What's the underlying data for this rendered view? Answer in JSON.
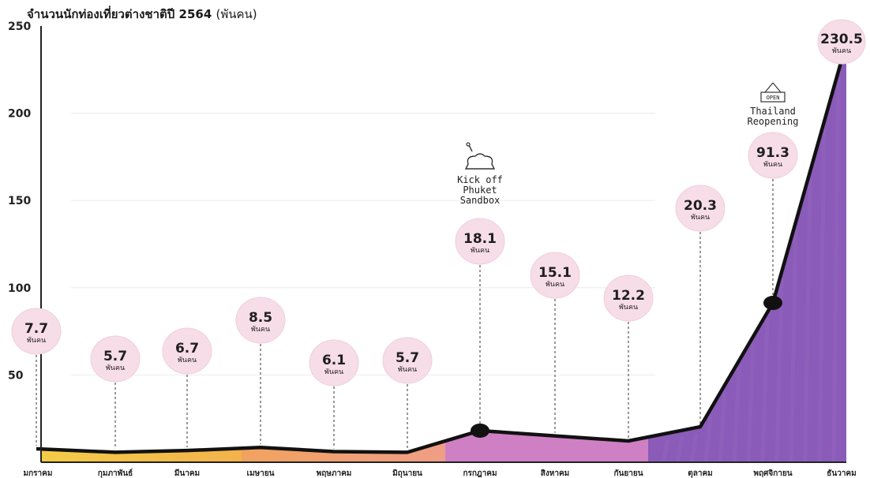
{
  "header": {
    "title": "จำนวนนักท่องเที่ยวต่างชาติปี 2564",
    "unit": "(พันคน)"
  },
  "chart_data": {
    "type": "area",
    "title": "จำนวนนักท่องเที่ยวต่างชาติปี 2564 (พันคน)",
    "categories": [
      "มกราคม",
      "กุมภาพันธ์",
      "มีนาคม",
      "เมษายน",
      "พฤษภาคม",
      "มิถุนายน",
      "กรกฎาคม",
      "สิงหาคม",
      "กันยายน",
      "ตุลาคม",
      "พฤศจิกายน",
      "ธันวาคม"
    ],
    "values": [
      7.7,
      5.7,
      6.7,
      8.5,
      6.1,
      5.7,
      18.1,
      15.1,
      12.2,
      20.3,
      91.3,
      230.5
    ],
    "data_labels": [
      "7.7",
      "5.7",
      "6.7",
      "8.5",
      "6.1",
      "5.7",
      "18.1",
      "15.1",
      "12.2",
      "20.3",
      "91.3",
      "230.5"
    ],
    "data_label_unit": "พันคน",
    "ylim": [
      0,
      250
    ],
    "yticks": [
      50,
      100,
      150,
      200,
      250
    ],
    "grid": true,
    "colors": {
      "line": "#111111",
      "band_jan_feb": "#f4cc47",
      "band_mar_apr": "#f2a25e",
      "band_may_jun": "#ef9e86",
      "band_jul_sep": "#cf7fc3",
      "band_oct_dec": "#8a5bb8",
      "bubble": "#f6dde7"
    },
    "annotations": [
      {
        "index": 6,
        "icon": "chef-hat-icon",
        "lines": [
          "Kick off",
          "Phuket",
          "Sandbox"
        ]
      },
      {
        "index": 10,
        "icon": "open-sign-icon",
        "lines": [
          "Thailand",
          "Reopening"
        ],
        "sign_text": "OPEN"
      }
    ]
  }
}
